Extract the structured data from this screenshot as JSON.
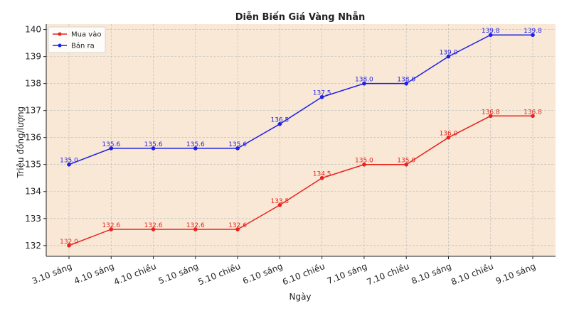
{
  "chart_data": {
    "type": "line",
    "title": "Diễn Biến Giá Vàng Nhẫn",
    "xlabel": "Ngày",
    "ylabel": "Triệu đồng/lượng",
    "categories": [
      "3.10 sáng",
      "4.10 sáng",
      "4.10 chiều",
      "5.10 sáng",
      "5.10 chiều",
      "6.10 sáng",
      "6.10 chiều",
      "7.10 sáng",
      "7.10 chiều",
      "8.10 sáng",
      "8.10 chiều",
      "9.10 sáng"
    ],
    "series": [
      {
        "name": "Mua vào",
        "color": "#e8231f",
        "values": [
          132.0,
          132.6,
          132.6,
          132.6,
          132.6,
          133.5,
          134.5,
          135.0,
          135.0,
          136.0,
          136.8,
          136.8
        ]
      },
      {
        "name": "Bán ra",
        "color": "#1f1fe8",
        "values": [
          135.0,
          135.6,
          135.6,
          135.6,
          135.6,
          136.5,
          137.5,
          138.0,
          138.0,
          139.0,
          139.8,
          139.8
        ]
      }
    ],
    "yticks": [
      132,
      133,
      134,
      135,
      136,
      137,
      138,
      139,
      140
    ],
    "ylim": [
      131.6,
      140.2
    ],
    "grid": true,
    "legend": "top-left",
    "plot_background": "#f8e8d5"
  }
}
